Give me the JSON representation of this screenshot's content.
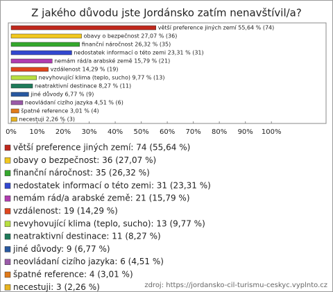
{
  "chart_data": {
    "type": "bar",
    "orientation": "horizontal",
    "title": "Z jakého důvodu jste Jordánsko zatím nenavštívil/a?",
    "categories": [
      "větší preference jiných zemí",
      "obavy o bezpečnost",
      "finanční náročnost",
      "nedostatek informací o této zemi",
      "nemám rád/a arabské země",
      "vzdálenost",
      "nevyhovující klima (teplo, sucho)",
      "neatraktivní destinace",
      "jiné důvody",
      "neovládaní cizího jazyka",
      "špatné reference",
      "necestuji"
    ],
    "values": [
      55.64,
      27.07,
      26.32,
      23.31,
      15.79,
      14.29,
      9.77,
      8.27,
      6.77,
      4.51,
      3.01,
      2.26
    ],
    "value_labels": [
      "větší preference jiných zemí 55,64 % (74)",
      "obavy o bezpečnost 27,07 % (36)",
      "finanční náročnost 26,32 % (35)",
      "nedostatek informací o této zemi 23,31 % (31)",
      "nemám rád/a arabské země 15,79 % (21)",
      "vzdálenost 14,29 % (19)",
      "nevyhovující klima (teplo, sucho) 9,77 % (13)",
      "neatraktivní destinace 8,27 % (11)",
      "jiné důvody 6,77 % (9)",
      "neovládaní cizího jazyka 4,51 % (6)",
      "špatné reference 3,01 % (4)",
      "necestuji 2,26 % (3)"
    ],
    "legend_labels": [
      "větší preference jiných zemí: 74 (55,64 %)",
      "obavy o bezpečnost: 36 (27,07 %)",
      "finanční náročnost: 35 (26,32 %)",
      "nedostatek informací o této zemi: 31 (23,31 %)",
      "nemám rád/a arabské země: 21 (15,79 %)",
      "vzdálenost: 19 (14,29 %)",
      "nevyhovující klima (teplo, sucho): 13 (9,77 %)",
      "neatraktivní destinace: 11 (8,27 %)",
      "jiné důvody: 9 (6,77 %)",
      "neovládaní cizího jazyka: 6 (4,51 %)",
      "špatné reference: 4 (3,01 %)",
      "necestuji: 3 (2,26 %)"
    ],
    "colors": [
      "#c0281c",
      "#f2c81e",
      "#34a82c",
      "#3248d0",
      "#b03cb0",
      "#e0461c",
      "#b8e040",
      "#1e7a5a",
      "#2858a0",
      "#9a5aa8",
      "#e07a1a",
      "#e8b420"
    ],
    "xlim": [
      0,
      121
    ],
    "xticks": [
      {
        "value": 0,
        "label": "0%"
      },
      {
        "value": 10,
        "label": "10%"
      },
      {
        "value": 20,
        "label": "20%"
      },
      {
        "value": 30,
        "label": "30%"
      },
      {
        "value": 40,
        "label": "40%"
      },
      {
        "value": 50,
        "label": "50%"
      },
      {
        "value": 60,
        "label": "60%"
      },
      {
        "value": 70,
        "label": "70%"
      },
      {
        "value": 80,
        "label": "80%"
      },
      {
        "value": 90,
        "label": "90%"
      },
      {
        "value": 100,
        "label": "100%"
      }
    ],
    "grid": false,
    "source": "zdroj: https://jordansko-cil-turismu-ceskyc.vyplnto.cz"
  }
}
